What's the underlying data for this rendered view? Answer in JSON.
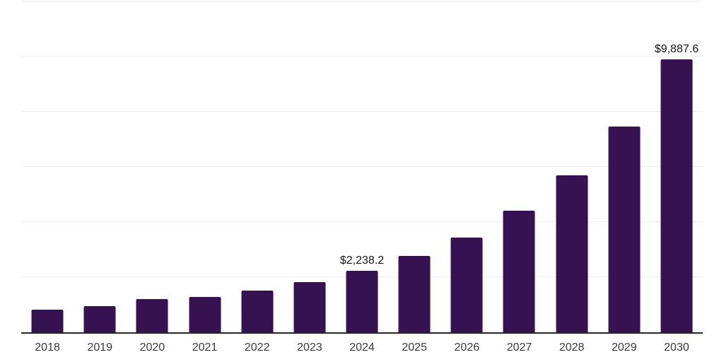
{
  "chart_data": {
    "type": "bar",
    "title": "",
    "xlabel": "",
    "ylabel": "",
    "ylim": [
      0,
      12000
    ],
    "gridline_step": 2000,
    "grid": "horizontal-only",
    "legend": "none",
    "y_tick_labels_visible": false,
    "currency_prefix": "$",
    "bar_color": "#371253",
    "axis_line_color": "#262626",
    "gridline_color": "#efefef",
    "x_label_color": "#3a3a3a",
    "data_label_color": "#141414",
    "categories": [
      "2018",
      "2019",
      "2020",
      "2021",
      "2022",
      "2023",
      "2024",
      "2025",
      "2026",
      "2027",
      "2028",
      "2029",
      "2030"
    ],
    "points": [
      {
        "year": "2018",
        "value": 810,
        "label": ""
      },
      {
        "year": "2019",
        "value": 950,
        "label": ""
      },
      {
        "year": "2020",
        "value": 1200,
        "label": ""
      },
      {
        "year": "2021",
        "value": 1280,
        "label": ""
      },
      {
        "year": "2022",
        "value": 1510,
        "label": ""
      },
      {
        "year": "2023",
        "value": 1820,
        "label": ""
      },
      {
        "year": "2024",
        "value": 2238.2,
        "label": "$2,238.2"
      },
      {
        "year": "2025",
        "value": 2780,
        "label": ""
      },
      {
        "year": "2026",
        "value": 3440,
        "label": ""
      },
      {
        "year": "2027",
        "value": 4400,
        "label": ""
      },
      {
        "year": "2028",
        "value": 5690,
        "label": ""
      },
      {
        "year": "2029",
        "value": 7460,
        "label": ""
      },
      {
        "year": "2030",
        "value": 9887.6,
        "label": "$9,887.6"
      }
    ]
  }
}
